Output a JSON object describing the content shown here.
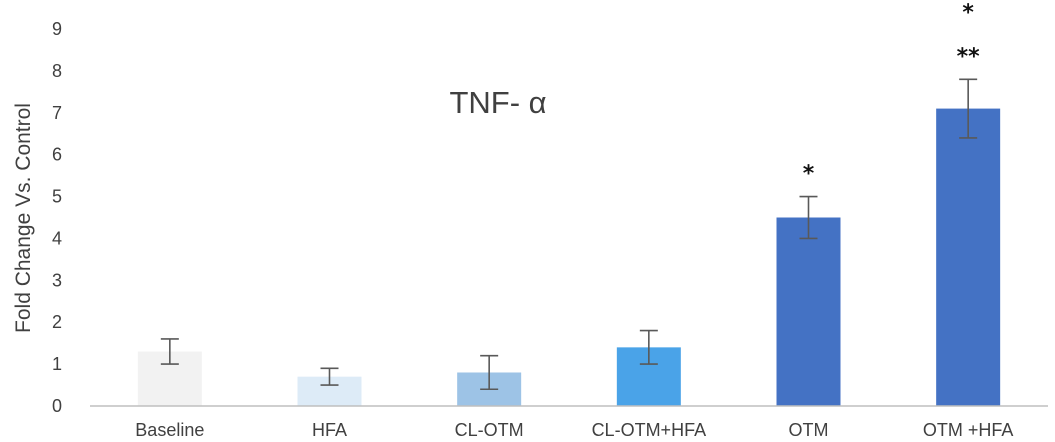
{
  "chart_data": {
    "type": "bar",
    "title": "TNF- α",
    "xlabel": "",
    "ylabel": "Fold Change Vs. Control",
    "ylim": [
      0,
      9
    ],
    "yticks": [
      "0",
      "1",
      "2",
      "3",
      "4",
      "5",
      "6",
      "7",
      "8",
      "9"
    ],
    "grid": false,
    "categories": [
      "Baseline",
      "HFA",
      "CL-OTM",
      "CL-OTM+HFA",
      "OTM",
      "OTM +HFA"
    ],
    "values": [
      1.3,
      0.7,
      0.8,
      1.4,
      4.5,
      7.1
    ],
    "error": [
      0.3,
      0.2,
      0.4,
      0.4,
      0.5,
      0.7
    ],
    "colors": [
      "#f2f2f2",
      "#ddebf7",
      "#9dc3e6",
      "#4aa3e8",
      "#4472c4",
      "#4472c4"
    ],
    "annotations": [
      {
        "category": "OTM",
        "lines": [
          "*"
        ]
      },
      {
        "category": "OTM +HFA",
        "lines": [
          "*",
          "**"
        ]
      }
    ]
  }
}
